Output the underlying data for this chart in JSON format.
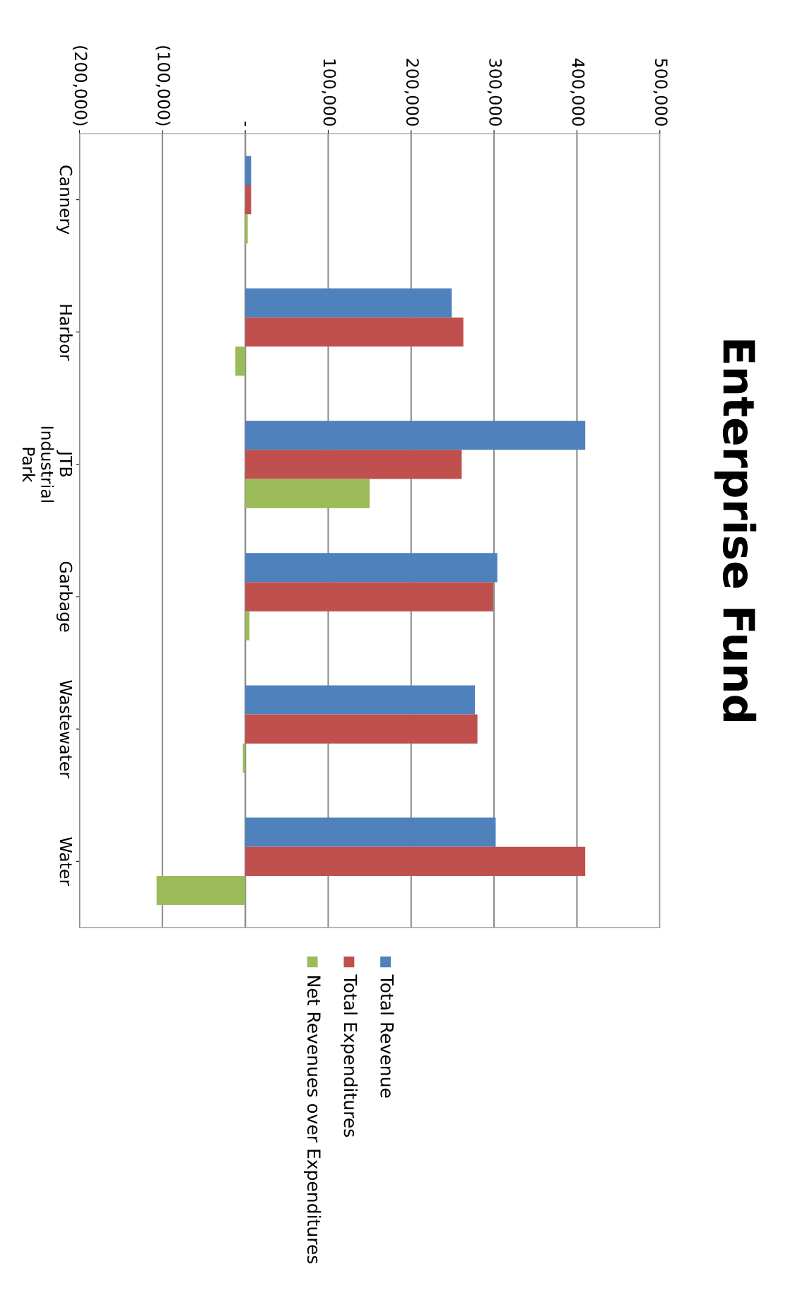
{
  "chart_data": {
    "type": "bar",
    "orientation": "horizontal",
    "title": "Enterprise Fund",
    "categories": [
      "Cannery",
      "Harbor",
      "JTB\nIndustrial\nPark",
      "Garbage",
      "Wastewater",
      "Water"
    ],
    "series": [
      {
        "name": "Total Revenue",
        "color": "#4f81bd",
        "values": [
          7000,
          249000,
          410000,
          304000,
          277000,
          302000
        ]
      },
      {
        "name": "Total Expenditures",
        "color": "#c0504d",
        "values": [
          7000,
          263000,
          261000,
          299000,
          280000,
          410000
        ]
      },
      {
        "name": "Net Revenues over Expenditures",
        "color": "#9bbb59",
        "values": [
          3000,
          -12000,
          150000,
          5000,
          -3000,
          -107000
        ]
      }
    ],
    "xlim": [
      -200000,
      500000
    ],
    "xticks": [
      {
        "value": -200000,
        "label": "(200,000)"
      },
      {
        "value": -100000,
        "label": "(100,000)"
      },
      {
        "value": 0,
        "label": "-"
      },
      {
        "value": 100000,
        "label": "100,000"
      },
      {
        "value": 200000,
        "label": "200,000"
      },
      {
        "value": 300000,
        "label": "300,000"
      },
      {
        "value": 400000,
        "label": "400,000"
      },
      {
        "value": 500000,
        "label": "500,000"
      }
    ],
    "grid": "x",
    "legend": "bottom"
  }
}
